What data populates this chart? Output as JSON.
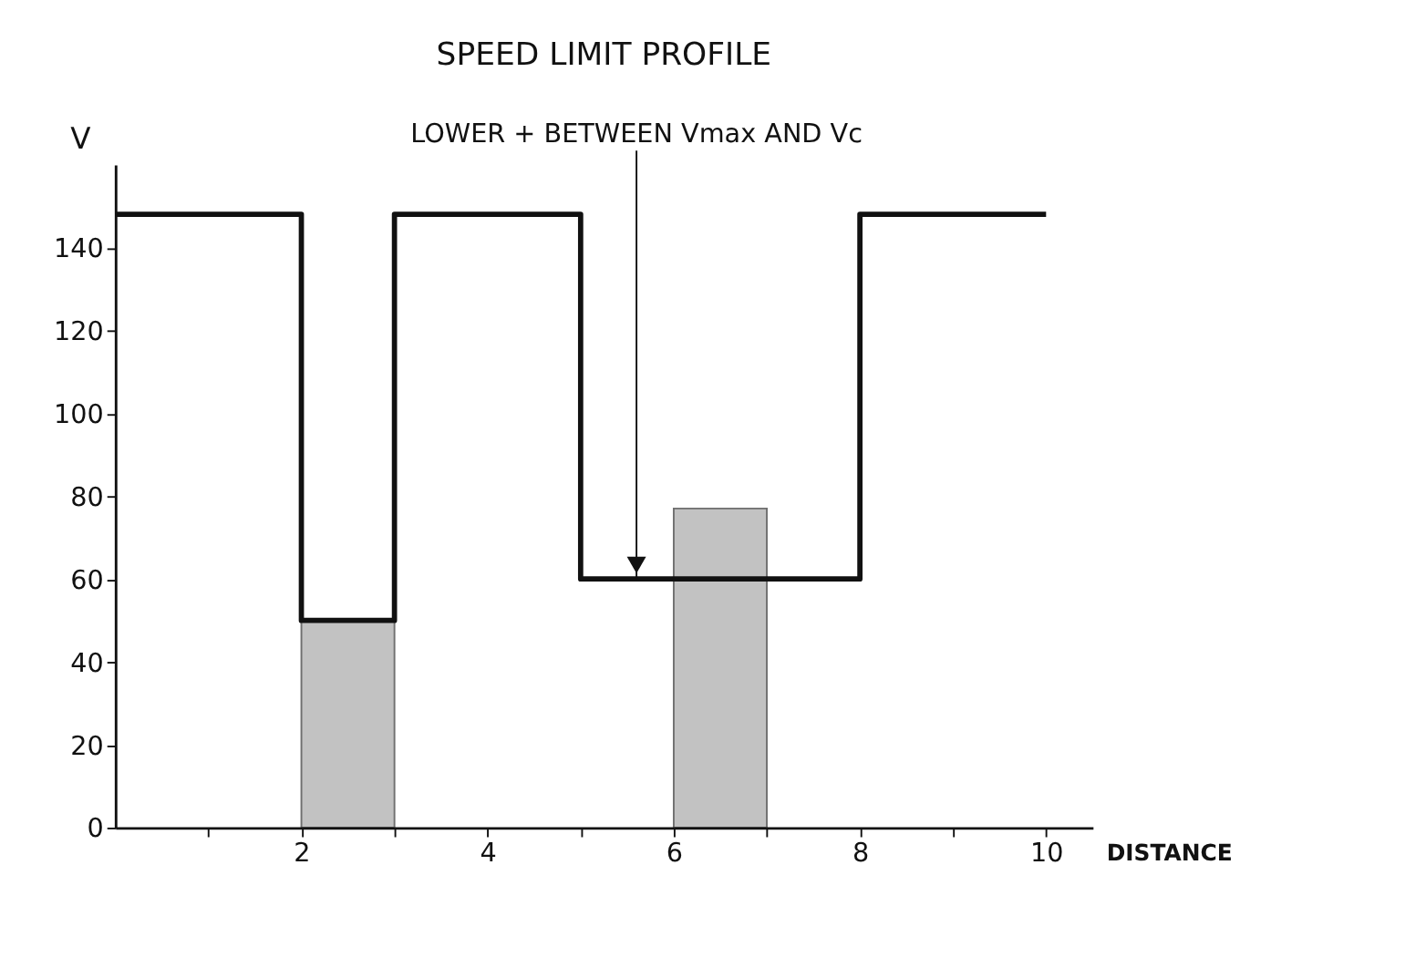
{
  "chart_data": {
    "type": "step",
    "title": "SPEED LIMIT PROFILE",
    "xlabel": "DISTANCE",
    "ylabel": "V",
    "series": [
      {
        "color": "#111111",
        "x": [
          0,
          2,
          3,
          5,
          8,
          10
        ],
        "values": [
          148,
          50,
          148,
          60,
          148,
          148
        ]
      },
      {
        "type": "bar",
        "color": "#9a9a9a",
        "x": [
          2.5,
          6.5
        ],
        "values": [
          50,
          77
        ]
      }
    ],
    "annotations": [
      {
        "text": "LOWER + BETWEEN Vmax AND Vc",
        "x": 5.6,
        "y": 60
      }
    ],
    "xlim": [
      0,
      10.5
    ],
    "ylim": [
      0,
      160
    ],
    "xticks": [
      {
        "value": 1,
        "label": null
      },
      2,
      {
        "value": 3,
        "label": null
      },
      4,
      {
        "value": 5,
        "label": null
      },
      6,
      {
        "value": 7,
        "label": null
      },
      8,
      {
        "value": 9,
        "label": null
      },
      10
    ],
    "yticks": [
      0,
      20,
      40,
      60,
      80,
      100,
      120,
      140
    ],
    "grid": false
  }
}
